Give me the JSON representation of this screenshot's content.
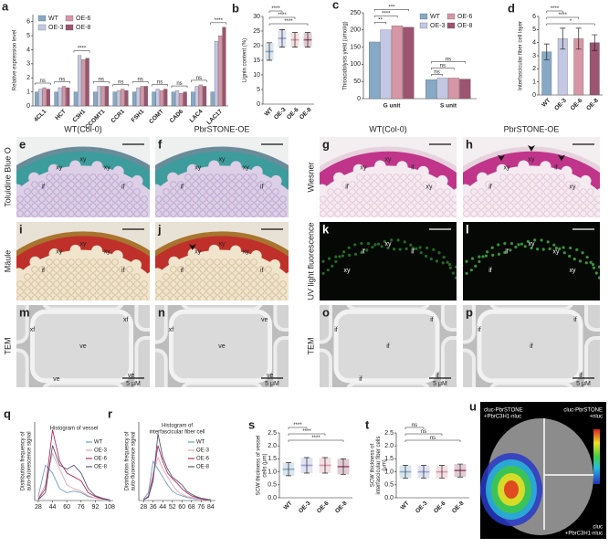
{
  "chart_data": [
    {
      "panel": "a",
      "type": "bar",
      "ylabel": "Relative expression level",
      "categories": [
        "4CL1",
        "HCT",
        "C3H1",
        "CCOMT1",
        "CCR1",
        "FSH1",
        "COMT",
        "CAD6",
        "LAC4",
        "LAC17"
      ],
      "series": [
        {
          "name": "WT",
          "color": "#86aac6",
          "values": [
            1,
            1,
            1,
            1,
            1,
            1,
            1,
            1,
            1,
            1
          ]
        },
        {
          "name": "OE-3",
          "color": "#c4c8e4",
          "values": [
            1.2,
            1.3,
            3.6,
            1.4,
            1.1,
            1.3,
            1.2,
            1.1,
            1.4,
            4.6
          ]
        },
        {
          "name": "OE-6",
          "color": "#d796a6",
          "values": [
            1.3,
            1.4,
            3.3,
            1.4,
            1.2,
            1.4,
            1.1,
            0.9,
            1.5,
            5.0
          ]
        },
        {
          "name": "OE-8",
          "color": "#9c5470",
          "values": [
            1.2,
            1.3,
            3.4,
            1.4,
            1.1,
            1.4,
            1.2,
            1.0,
            1.4,
            5.6
          ]
        }
      ],
      "ylim": [
        0,
        6.5
      ],
      "yticks": [
        0,
        1,
        2,
        3,
        4,
        5,
        6
      ],
      "legend": "upper left",
      "annotations": [
        "ns",
        "ns",
        "****",
        "ns",
        "ns",
        "ns",
        "ns",
        "ns",
        "ns",
        "****"
      ]
    },
    {
      "panel": "b",
      "type": "dot",
      "ylabel": "Lignin content (%)",
      "categories": [
        "WT",
        "OE-3",
        "OE-6",
        "OE-8"
      ],
      "values": [
        18,
        22.5,
        22,
        22
      ],
      "errors": [
        3,
        3,
        2.5,
        2.5
      ],
      "colors": [
        "#86aac6",
        "#9aa2d4",
        "#d796a6",
        "#9c5470"
      ],
      "ylim": [
        0,
        30
      ],
      "yticks": [
        0,
        5,
        10,
        15,
        20,
        25,
        30
      ],
      "annotations": [
        "****",
        "****",
        "****"
      ]
    },
    {
      "panel": "c",
      "type": "bar",
      "ylabel": "Thioacidolysis yield (umol/g)",
      "categories": [
        "G unit",
        "S unit"
      ],
      "series": [
        {
          "name": "WT",
          "color": "#86aac6",
          "values": [
            165,
            55
          ]
        },
        {
          "name": "OE-3",
          "color": "#c4c8e4",
          "values": [
            200,
            60
          ]
        },
        {
          "name": "OE-6",
          "color": "#d796a6",
          "values": [
            212,
            60
          ]
        },
        {
          "name": "OE-8",
          "color": "#9c5470",
          "values": [
            208,
            57
          ]
        }
      ],
      "ylim": [
        0,
        250
      ],
      "yticks": [
        0,
        50,
        100,
        150,
        200,
        250
      ],
      "legend": "upper right",
      "annotations": [
        "**",
        "****",
        "***",
        "ns",
        "ns",
        "ns"
      ]
    },
    {
      "panel": "d",
      "type": "bar",
      "ylabel": "Interfascicular fiber cell layer",
      "categories": [
        "WT",
        "OE-3",
        "OE-6",
        "OE-8"
      ],
      "values": [
        3.3,
        4.3,
        4.3,
        4.0
      ],
      "errors": [
        0.6,
        0.8,
        0.8,
        0.6
      ],
      "colors": [
        "#86aac6",
        "#c4c8e4",
        "#d796a6",
        "#9c5470"
      ],
      "ylim": [
        0,
        6
      ],
      "yticks": [
        0,
        1,
        2,
        3,
        4,
        5,
        6
      ],
      "annotations": [
        "****",
        "****",
        "*"
      ]
    },
    {
      "panel": "q",
      "type": "line",
      "title": "Histogram of vessel",
      "ylabel": "Distribution frequency of auto-fluorescence signal",
      "x": [
        28,
        36,
        44,
        52,
        60,
        68,
        76,
        84,
        92,
        100,
        108
      ],
      "series": [
        {
          "name": "WT",
          "color": "#6f9fc0",
          "values": [
            0.05,
            0.45,
            0.35,
            0.15,
            0.1,
            0.12,
            0.1,
            0.05,
            0.03,
            0.02,
            0.01
          ]
        },
        {
          "name": "OE-3",
          "color": "#e8a2ac",
          "values": [
            0.02,
            0.2,
            0.6,
            0.4,
            0.2,
            0.15,
            0.12,
            0.06,
            0.03,
            0.02,
            0.01
          ]
        },
        {
          "name": "OE-6",
          "color": "#b0305f",
          "values": [
            0.02,
            0.15,
            0.9,
            0.5,
            0.35,
            0.3,
            0.25,
            0.1,
            0.05,
            0.02,
            0.01
          ]
        },
        {
          "name": "OE-8",
          "color": "#555a78",
          "values": [
            0.01,
            0.1,
            0.7,
            0.45,
            0.4,
            0.45,
            0.35,
            0.15,
            0.06,
            0.03,
            0.01
          ]
        }
      ],
      "xlim": [
        24,
        112
      ],
      "xticks": [
        28,
        44,
        60,
        76,
        92,
        108
      ],
      "ylim": [
        0,
        1
      ],
      "legend": "upper right"
    },
    {
      "panel": "r",
      "type": "line",
      "title": "Histogram of interfascicular fiber cell",
      "ylabel": "Distribution frequency of auto-fluorescence signal",
      "x": [
        28,
        32,
        36,
        40,
        44,
        48,
        52,
        56,
        60,
        64,
        68,
        72,
        76,
        80,
        84
      ],
      "series": [
        {
          "name": "WT",
          "color": "#6f9fc0",
          "values": [
            0.02,
            0.1,
            0.5,
            0.4,
            0.3,
            0.2,
            0.12,
            0.08,
            0.06,
            0.04,
            0.03,
            0.02,
            0.02,
            0.01,
            0.01
          ]
        },
        {
          "name": "OE-3",
          "color": "#e8a2ac",
          "values": [
            0.01,
            0.06,
            0.35,
            0.55,
            0.4,
            0.3,
            0.2,
            0.12,
            0.08,
            0.05,
            0.04,
            0.03,
            0.02,
            0.01,
            0.01
          ]
        },
        {
          "name": "OE-6",
          "color": "#b0305f",
          "values": [
            0.01,
            0.05,
            0.3,
            0.7,
            0.5,
            0.35,
            0.28,
            0.22,
            0.15,
            0.1,
            0.06,
            0.04,
            0.02,
            0.01,
            0.01
          ]
        },
        {
          "name": "OE-8",
          "color": "#555a78",
          "values": [
            0.01,
            0.04,
            0.25,
            0.85,
            0.55,
            0.4,
            0.3,
            0.25,
            0.2,
            0.12,
            0.08,
            0.05,
            0.03,
            0.02,
            0.01
          ]
        }
      ],
      "xlim": [
        24,
        88
      ],
      "xticks": [
        28,
        36,
        44,
        52,
        60,
        68,
        76,
        84
      ],
      "ylim": [
        0,
        1
      ],
      "legend": "upper right"
    },
    {
      "panel": "s",
      "type": "dot",
      "ylabel": "SCW thickness of vessel cells (μm)",
      "categories": [
        "WT",
        "OE-3",
        "OE-6",
        "OE-8"
      ],
      "values": [
        1.1,
        1.25,
        1.25,
        1.2
      ],
      "errors": [
        0.25,
        0.3,
        0.3,
        0.3
      ],
      "colors": [
        "#86aac6",
        "#9aa2d4",
        "#d796a6",
        "#9c5470"
      ],
      "ylim": [
        0,
        2.5
      ],
      "yticks": [
        {
          "value": 0,
          "label": "0.0"
        },
        0.5,
        {
          "value": 1,
          "label": "1.0"
        },
        1.5,
        {
          "value": 2,
          "label": "2.0"
        },
        2.5
      ],
      "annotations": [
        "****",
        "****",
        "****"
      ]
    },
    {
      "panel": "t",
      "type": "dot",
      "ylabel": "SCW thickness of interfascicular fiber cells (μm)",
      "categories": [
        "WT",
        "OE-3",
        "OE-6",
        "OE-8"
      ],
      "values": [
        1.0,
        1.0,
        1.0,
        1.05
      ],
      "errors": [
        0.25,
        0.25,
        0.25,
        0.25
      ],
      "colors": [
        "#86aac6",
        "#9aa2d4",
        "#d796a6",
        "#9c5470"
      ],
      "ylim": [
        0,
        2.5
      ],
      "yticks": [
        {
          "value": 0,
          "label": "0.0"
        },
        0.5,
        {
          "value": 1,
          "label": "1.0"
        },
        1.5,
        {
          "value": 2,
          "label": "2.0"
        },
        2.5
      ],
      "annotations": [
        "ns",
        "ns",
        "ns"
      ]
    }
  ],
  "micrographs": {
    "columns": [
      "WT(Col-0)",
      "PbrSTONE-OE",
      "WT(Col-0)",
      "PbrSTONE-OE"
    ],
    "row_labels_left": [
      "Toluidine Blue O",
      "Mäule",
      "TEM"
    ],
    "row_labels_right": [
      "Wiesner",
      "UV light fluorescence",
      "TEM"
    ],
    "scale_label": "5 μM",
    "panels": [
      {
        "letter": "e",
        "labels": [
          "xy",
          "xy",
          "xy",
          "if",
          "if"
        ]
      },
      {
        "letter": "f",
        "labels": [
          "xy",
          "xy",
          "xy",
          "if",
          "if"
        ]
      },
      {
        "letter": "g",
        "labels": [
          "xy",
          "xy",
          "if",
          "if",
          "xy"
        ]
      },
      {
        "letter": "h",
        "labels": [
          "xy",
          "xy",
          "if",
          "if",
          "xy"
        ]
      },
      {
        "letter": "i",
        "labels": [
          "xy",
          "xy",
          "xy",
          "if",
          "if"
        ]
      },
      {
        "letter": "j",
        "labels": [
          "xy",
          "xy",
          "xy",
          "if",
          "if"
        ]
      },
      {
        "letter": "k",
        "labels": [
          "if",
          "xy",
          "if",
          "xy"
        ]
      },
      {
        "letter": "l",
        "labels": [
          "if",
          "xy",
          "xy",
          "if",
          "xy"
        ]
      },
      {
        "letter": "m",
        "labels": [
          "ve",
          "xf",
          "xf",
          "ve",
          "ve"
        ]
      },
      {
        "letter": "n",
        "labels": [
          "ve",
          "xf",
          "ve",
          "ve"
        ]
      },
      {
        "letter": "o",
        "labels": [
          "if",
          "if",
          "if",
          "if",
          "if"
        ]
      },
      {
        "letter": "p",
        "labels": [
          "if",
          "if",
          "if",
          "if"
        ]
      }
    ]
  },
  "luciferase": {
    "panel": "u",
    "labels": [
      "cluc-PbrSTONE +PbrC3H1-nluc",
      "cluc-PbrSTONE +nluc",
      "cluc +PbrC3H1-nluc"
    ]
  }
}
